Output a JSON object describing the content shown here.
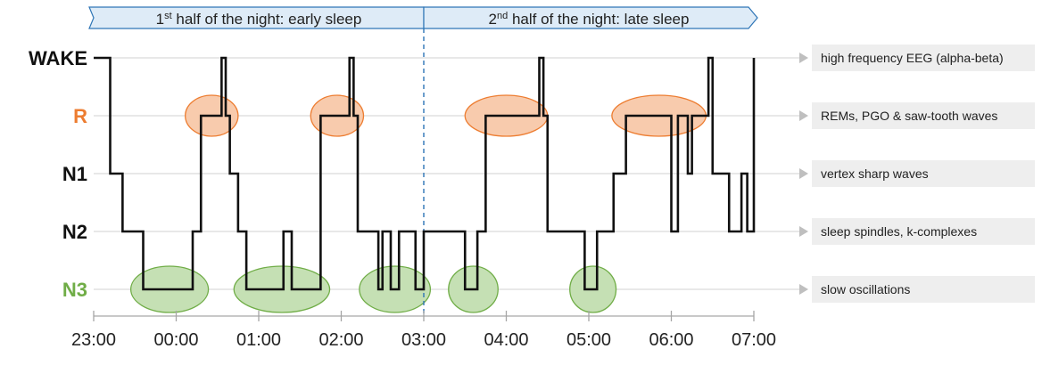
{
  "chart_data": {
    "type": "line",
    "title": "",
    "xlabel": "",
    "ylabel": "",
    "x_unit": "hours_after_23:00",
    "xlim": [
      0,
      8
    ],
    "x_ticks": [
      0,
      1,
      2,
      3,
      4,
      5,
      6,
      7,
      8
    ],
    "x_tick_labels": [
      "23:00",
      "00:00",
      "01:00",
      "02:00",
      "03:00",
      "04:00",
      "05:00",
      "06:00",
      "07:00"
    ],
    "stages": [
      {
        "name": "WAKE",
        "label": "WAKE",
        "color": "#111111",
        "annotation": "high frequency EEG (alpha-beta)"
      },
      {
        "name": "R",
        "label": "R",
        "color": "#ED7D31",
        "annotation": "REMs, PGO & saw-tooth waves"
      },
      {
        "name": "N1",
        "label": "N1",
        "color": "#111111",
        "annotation": "vertex sharp waves"
      },
      {
        "name": "N2",
        "label": "N2",
        "color": "#111111",
        "annotation": "sleep spindles, k-complexes"
      },
      {
        "name": "N3",
        "label": "N3",
        "color": "#70AD47",
        "annotation": "slow oscillations"
      }
    ],
    "bands": [
      {
        "x0": 0,
        "x1": 4,
        "prefix": "1",
        "sup": "st",
        "text": " half of the night: early sleep"
      },
      {
        "x0": 4,
        "x1": 8,
        "prefix": "2",
        "sup": "nd",
        "text": " half of the night: late sleep"
      }
    ],
    "divider_x": 4,
    "hypnogram": [
      [
        0.2,
        "WAKE"
      ],
      [
        0.2,
        "N1"
      ],
      [
        0.35,
        "N1"
      ],
      [
        0.35,
        "N2"
      ],
      [
        0.6,
        "N2"
      ],
      [
        0.6,
        "N3"
      ],
      [
        1.2,
        "N3"
      ],
      [
        1.2,
        "N2"
      ],
      [
        1.3,
        "N2"
      ],
      [
        1.3,
        "R"
      ],
      [
        1.55,
        "R"
      ],
      [
        1.55,
        "WAKE"
      ],
      [
        1.6,
        "WAKE"
      ],
      [
        1.6,
        "R"
      ],
      [
        1.65,
        "R"
      ],
      [
        1.65,
        "N1"
      ],
      [
        1.75,
        "N1"
      ],
      [
        1.75,
        "N2"
      ],
      [
        1.85,
        "N2"
      ],
      [
        1.85,
        "N3"
      ],
      [
        2.3,
        "N3"
      ],
      [
        2.3,
        "N2"
      ],
      [
        2.4,
        "N2"
      ],
      [
        2.4,
        "N3"
      ],
      [
        2.75,
        "N3"
      ],
      [
        2.75,
        "R"
      ],
      [
        3.1,
        "R"
      ],
      [
        3.1,
        "WAKE"
      ],
      [
        3.15,
        "WAKE"
      ],
      [
        3.15,
        "R"
      ],
      [
        3.2,
        "R"
      ],
      [
        3.2,
        "N2"
      ],
      [
        3.45,
        "N2"
      ],
      [
        3.45,
        "N3"
      ],
      [
        3.5,
        "N3"
      ],
      [
        3.5,
        "N2"
      ],
      [
        3.6,
        "N2"
      ],
      [
        3.6,
        "N3"
      ],
      [
        3.7,
        "N3"
      ],
      [
        3.7,
        "N2"
      ],
      [
        3.9,
        "N2"
      ],
      [
        3.9,
        "N3"
      ],
      [
        4.0,
        "N3"
      ],
      [
        4.0,
        "N2"
      ],
      [
        4.5,
        "N2"
      ],
      [
        4.5,
        "N3"
      ],
      [
        4.65,
        "N3"
      ],
      [
        4.65,
        "N2"
      ],
      [
        4.75,
        "N2"
      ],
      [
        4.75,
        "R"
      ],
      [
        5.4,
        "R"
      ],
      [
        5.4,
        "WAKE"
      ],
      [
        5.45,
        "WAKE"
      ],
      [
        5.45,
        "R"
      ],
      [
        5.5,
        "R"
      ],
      [
        5.5,
        "N2"
      ],
      [
        5.95,
        "N2"
      ],
      [
        5.95,
        "N3"
      ],
      [
        6.1,
        "N3"
      ],
      [
        6.1,
        "N2"
      ],
      [
        6.3,
        "N2"
      ],
      [
        6.3,
        "N1"
      ],
      [
        6.45,
        "N1"
      ],
      [
        6.45,
        "R"
      ],
      [
        7.0,
        "R"
      ],
      [
        7.0,
        "N2"
      ],
      [
        7.08,
        "N2"
      ],
      [
        7.08,
        "R"
      ],
      [
        7.2,
        "R"
      ],
      [
        7.2,
        "N1"
      ],
      [
        7.25,
        "N1"
      ],
      [
        7.25,
        "R"
      ],
      [
        7.45,
        "R"
      ],
      [
        7.45,
        "WAKE"
      ],
      [
        7.5,
        "WAKE"
      ],
      [
        7.5,
        "N1"
      ],
      [
        7.7,
        "N1"
      ],
      [
        7.7,
        "N2"
      ],
      [
        7.85,
        "N2"
      ],
      [
        7.85,
        "N1"
      ],
      [
        7.92,
        "N1"
      ],
      [
        7.92,
        "N2"
      ],
      [
        8.0,
        "N2"
      ],
      [
        8.0,
        "WAKE"
      ]
    ],
    "highlight_ellipses": [
      {
        "stage": "R",
        "x": 1.43,
        "rx": 0.32
      },
      {
        "stage": "R",
        "x": 2.95,
        "rx": 0.32
      },
      {
        "stage": "R",
        "x": 5.0,
        "rx": 0.5
      },
      {
        "stage": "R",
        "x": 6.85,
        "rx": 0.57
      },
      {
        "stage": "N3",
        "x": 0.92,
        "rx": 0.47
      },
      {
        "stage": "N3",
        "x": 2.28,
        "rx": 0.58
      },
      {
        "stage": "N3",
        "x": 3.65,
        "rx": 0.43
      },
      {
        "stage": "N3",
        "x": 4.6,
        "rx": 0.3
      },
      {
        "stage": "N3",
        "x": 6.05,
        "rx": 0.28
      }
    ],
    "colors": {
      "R_fill": "#F8CBAD",
      "R_stroke": "#ED7D31",
      "N3_fill": "#C5E0B4",
      "N3_stroke": "#70AD47",
      "band_fill": "#DEEBF7",
      "band_stroke": "#2E75B6",
      "divider": "#2E75B6",
      "grid": "#D9D9D9",
      "annotation_box": "#EEEEEE"
    }
  }
}
